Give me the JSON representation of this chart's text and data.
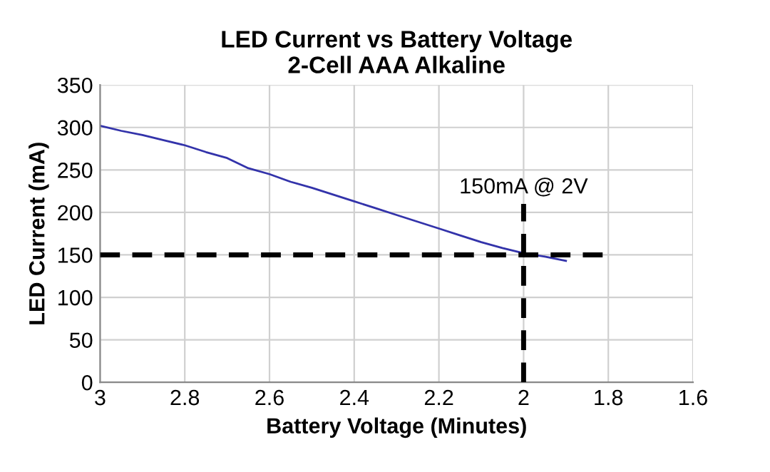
{
  "chart_data": {
    "type": "line",
    "title": "LED Current vs Battery Voltage\n2-Cell AAA Alkaline",
    "xlabel": "Battery Voltage (Minutes)",
    "ylabel": "LED Current (mA)",
    "x": [
      3.0,
      2.95,
      2.9,
      2.85,
      2.8,
      2.75,
      2.7,
      2.65,
      2.6,
      2.55,
      2.5,
      2.45,
      2.4,
      2.35,
      2.3,
      2.25,
      2.2,
      2.15,
      2.1,
      2.05,
      2.0,
      1.95,
      1.9
    ],
    "series": [
      {
        "color": "#3333aa",
        "values": [
          302,
          296,
          291,
          285,
          279,
          271,
          264,
          252,
          245,
          236,
          229,
          221,
          213,
          205,
          197,
          189,
          181,
          173,
          165,
          158,
          152,
          148,
          143
        ]
      }
    ],
    "xlim": [
      3.0,
      1.6
    ],
    "xticks": [
      3,
      2.8,
      2.6,
      2.4,
      2.2,
      2,
      1.8,
      1.6
    ],
    "ylim": [
      0,
      350
    ],
    "yticks": [
      0,
      50,
      100,
      150,
      200,
      250,
      300,
      350
    ],
    "grid": true,
    "marker": "none",
    "line_style": "solid",
    "ref_lines": [
      {
        "axis": "x",
        "value": 2,
        "label": "150mA @ 2V",
        "color": "#000000",
        "line_style": "dashed"
      },
      {
        "axis": "y",
        "value": 150,
        "color": "#000000",
        "line_style": "dashed"
      }
    ]
  }
}
